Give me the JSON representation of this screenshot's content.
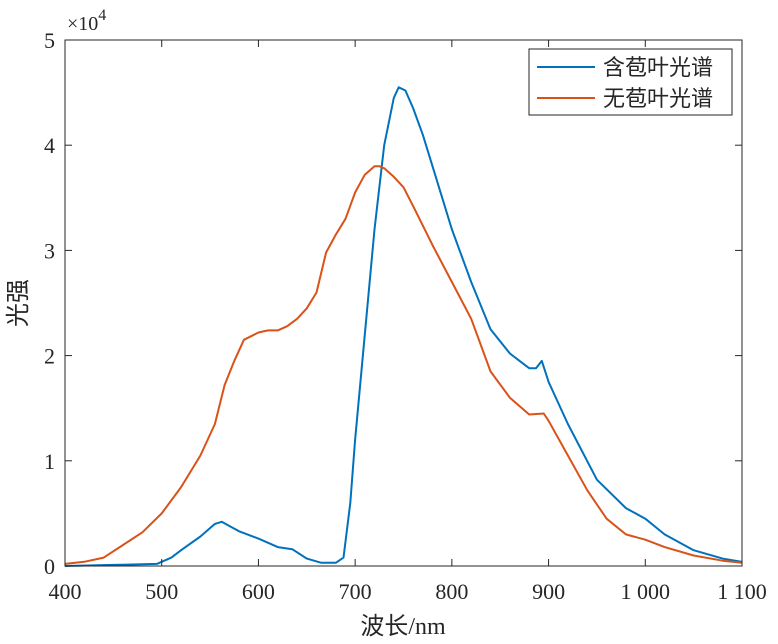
{
  "chart_data": {
    "type": "line",
    "title": "",
    "xlabel": "波长/nm",
    "ylabel": "光强",
    "xlim": [
      400,
      1100
    ],
    "ylim": [
      0,
      5
    ],
    "y_multiplier_label": "×10",
    "y_multiplier_exponent": "4",
    "x_ticks": [
      400,
      500,
      600,
      700,
      800,
      900,
      1000,
      1100
    ],
    "x_tick_labels": [
      "400",
      "500",
      "600",
      "700",
      "800",
      "900",
      "1 000",
      "1 100"
    ],
    "y_ticks": [
      0,
      1,
      2,
      3,
      4,
      5
    ],
    "y_tick_labels": [
      "0",
      "1",
      "2",
      "3",
      "4",
      "5"
    ],
    "grid": false,
    "legend_position": "top-right",
    "series": [
      {
        "name": "含苞叶光谱",
        "color": "#0072BD",
        "x": [
          400,
          450,
          495,
          510,
          520,
          540,
          555,
          562,
          570,
          580,
          600,
          620,
          635,
          650,
          665,
          680,
          688,
          695,
          700,
          710,
          720,
          730,
          740,
          745,
          752,
          760,
          770,
          780,
          800,
          820,
          840,
          860,
          870,
          880,
          887,
          893,
          900,
          920,
          950,
          980,
          1000,
          1020,
          1050,
          1080,
          1100
        ],
        "y": [
          0.0,
          0.01,
          0.02,
          0.08,
          0.15,
          0.28,
          0.4,
          0.42,
          0.38,
          0.33,
          0.26,
          0.18,
          0.16,
          0.07,
          0.03,
          0.03,
          0.08,
          0.6,
          1.2,
          2.2,
          3.2,
          4.0,
          4.45,
          4.55,
          4.52,
          4.35,
          4.1,
          3.8,
          3.2,
          2.7,
          2.25,
          2.02,
          1.95,
          1.88,
          1.88,
          1.95,
          1.75,
          1.35,
          0.82,
          0.55,
          0.45,
          0.3,
          0.15,
          0.07,
          0.04
        ]
      },
      {
        "name": "无苞叶光谱",
        "color": "#D95319",
        "x": [
          400,
          420,
          440,
          460,
          480,
          500,
          520,
          540,
          555,
          565,
          575,
          585,
          600,
          610,
          620,
          630,
          640,
          650,
          660,
          670,
          680,
          690,
          700,
          710,
          720,
          725,
          730,
          740,
          750,
          760,
          780,
          800,
          820,
          840,
          860,
          880,
          895,
          900,
          920,
          940,
          960,
          980,
          1000,
          1020,
          1050,
          1080,
          1100
        ],
        "y": [
          0.02,
          0.04,
          0.08,
          0.2,
          0.32,
          0.5,
          0.75,
          1.05,
          1.35,
          1.72,
          1.95,
          2.15,
          2.22,
          2.24,
          2.24,
          2.28,
          2.35,
          2.45,
          2.6,
          2.98,
          3.15,
          3.3,
          3.55,
          3.72,
          3.8,
          3.8,
          3.78,
          3.7,
          3.6,
          3.42,
          3.05,
          2.7,
          2.35,
          1.85,
          1.6,
          1.44,
          1.45,
          1.38,
          1.05,
          0.72,
          0.45,
          0.3,
          0.25,
          0.18,
          0.1,
          0.05,
          0.03
        ]
      }
    ]
  }
}
